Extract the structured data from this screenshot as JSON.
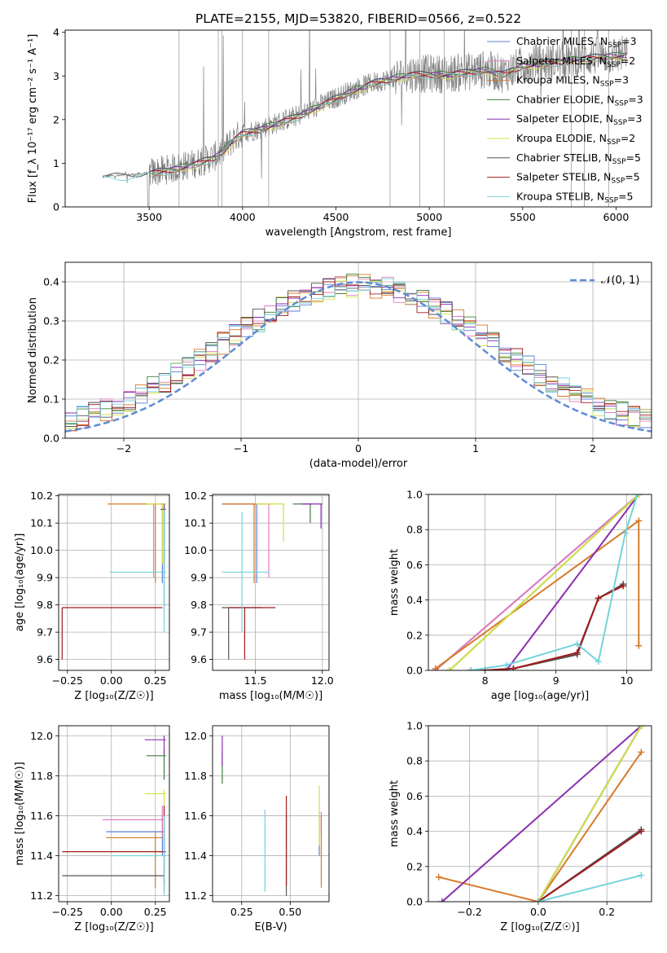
{
  "figure": {
    "title": "PLATE=2155, MJD=53820, FIBERID=0566, z=0.522"
  },
  "models": [
    {
      "name": "Chabrier MILES, N",
      "sub": "SSP",
      "suffix": "=3",
      "color": "#5e7fd6"
    },
    {
      "name": "Salpeter MILES, N",
      "sub": "SSP",
      "suffix": "=2",
      "color": "#e07bc0"
    },
    {
      "name": "Kroupa MILES, N",
      "sub": "SSP",
      "suffix": "=3",
      "color": "#d77a2a"
    },
    {
      "name": "Chabrier ELODIE, N",
      "sub": "SSP",
      "suffix": "=3",
      "color": "#3f7f3f"
    },
    {
      "name": "Salpeter ELODIE, N",
      "sub": "SSP",
      "suffix": "=3",
      "color": "#8a2fb0"
    },
    {
      "name": "Kroupa ELODIE, N",
      "sub": "SSP",
      "suffix": "=2",
      "color": "#d6e04a"
    },
    {
      "name": "Chabrier STELIB, N",
      "sub": "SSP",
      "suffix": "=5",
      "color": "#555555"
    },
    {
      "name": "Salpeter STELIB, N",
      "sub": "SSP",
      "suffix": "=5",
      "color": "#a01c1c"
    },
    {
      "name": "Kroupa STELIB, N",
      "sub": "SSP",
      "suffix": "=5",
      "color": "#74d3dc"
    }
  ],
  "chart_data": [
    {
      "id": "spectrum",
      "type": "line",
      "xlabel": "wavelength [Angstrom, rest frame]",
      "ylabel": "Flux [f_λ 10⁻¹⁷ erg cm⁻² s⁻¹ A⁻¹]",
      "xlim": [
        3050,
        6190
      ],
      "ylim": [
        0,
        4.05
      ],
      "xticks": [
        3500,
        4000,
        4500,
        5000,
        5500,
        6000
      ],
      "yticks": [
        0,
        1,
        2,
        3,
        4
      ],
      "grid": false,
      "legend": "top-right",
      "data_color": "#808080",
      "continuum": {
        "x": [
          3250,
          3350,
          3450,
          3550,
          3650,
          3750,
          3850,
          3900,
          3950,
          4000,
          4100,
          4200,
          4300,
          4400,
          4500,
          4600,
          4700,
          4800,
          4900,
          5000,
          5100,
          5200,
          5300,
          5400,
          5500,
          5600,
          5700,
          5800,
          5900,
          6050
        ],
        "y": [
          0.7,
          0.72,
          0.75,
          0.82,
          0.9,
          1.0,
          1.15,
          1.3,
          1.55,
          1.7,
          1.8,
          1.95,
          2.1,
          2.3,
          2.5,
          2.7,
          2.85,
          2.95,
          3.05,
          3.05,
          3.05,
          3.1,
          3.15,
          3.05,
          3.25,
          3.3,
          3.35,
          3.4,
          3.45,
          3.5
        ]
      }
    },
    {
      "id": "residuals",
      "type": "bar",
      "xlabel": "(data-model)/error",
      "ylabel": "Normed distribution",
      "xlim": [
        -2.5,
        2.5
      ],
      "ylim": [
        0,
        0.45
      ],
      "xticks": [
        -2,
        -1,
        0,
        1,
        2
      ],
      "yticks": [
        0.0,
        0.1,
        0.2,
        0.3,
        0.4
      ],
      "grid": true,
      "legend": "top-right",
      "gaussian_label": "𝒩(0, 1)",
      "gaussian_color": "#5e8bd6",
      "bin_width": 0.1
    },
    {
      "id": "z-age",
      "type": "scatter",
      "xlabel": "Z [log₁₀(Z/Z☉)]",
      "ylabel": "age  [log₁₀(age/yr)]",
      "xlim": [
        -0.3,
        0.33
      ],
      "ylim": [
        9.56,
        10.205
      ],
      "xticks": [
        -0.25,
        0.0,
        0.25
      ],
      "yticks": [
        9.6,
        9.7,
        9.8,
        9.9,
        10.0,
        10.1,
        10.2
      ],
      "grid": true,
      "points": [
        {
          "model": 0,
          "x": 0.29,
          "y": 10.17,
          "x0": 0.29,
          "x1": 0.3,
          "y0": 9.88,
          "y1": 10.17
        },
        {
          "model": 1,
          "x": 0.24,
          "y": 10.17,
          "x0": 0.24,
          "x1": 0.3,
          "y0": 9.9,
          "y1": 10.17
        },
        {
          "model": 2,
          "x": 0.25,
          "y": 10.17,
          "x0": -0.02,
          "x1": 0.29,
          "y0": 9.88,
          "y1": 10.17
        },
        {
          "model": 3,
          "x": 0.3,
          "y": 10.17,
          "x0": 0.28,
          "x1": 0.31,
          "y0": 9.95,
          "y1": 10.17
        },
        {
          "model": 4,
          "x": 0.3,
          "y": 10.17,
          "x0": 0.28,
          "x1": 0.31,
          "y0": 9.9,
          "y1": 10.17
        },
        {
          "model": 5,
          "x": 0.29,
          "y": 10.17,
          "x0": 0.2,
          "x1": 0.31,
          "y0": 9.95,
          "y1": 10.17
        },
        {
          "model": 6,
          "x": 0.3,
          "y": 10.15,
          "x0": 0.28,
          "x1": 0.31,
          "y0": 9.78,
          "y1": 10.15
        },
        {
          "model": 7,
          "x": -0.28,
          "y": 9.79,
          "x0": -0.28,
          "x1": 0.29,
          "y0": 9.6,
          "y1": 9.79
        },
        {
          "model": 8,
          "x": 0.3,
          "y": 9.92,
          "x0": -0.01,
          "x1": 0.31,
          "y0": 9.7,
          "y1": 10.15
        }
      ]
    },
    {
      "id": "mass-age",
      "type": "scatter",
      "xlabel": "mass [log₁₀(M/M☉)]",
      "ylabel": "",
      "xlim": [
        11.18,
        12.05
      ],
      "ylim": [
        9.56,
        10.205
      ],
      "xticks": [
        11.5,
        12.0
      ],
      "yticks": [
        9.6,
        9.7,
        9.8,
        9.9,
        10.0,
        10.1,
        10.2
      ],
      "grid": true,
      "points": [
        {
          "model": 0,
          "x": 11.51,
          "y": 10.17,
          "x0": 11.25,
          "x1": 11.55,
          "y0": 9.88,
          "y1": 10.17
        },
        {
          "model": 1,
          "x": 11.6,
          "y": 10.17,
          "x0": 11.25,
          "x1": 11.62,
          "y0": 9.9,
          "y1": 10.17
        },
        {
          "model": 2,
          "x": 11.49,
          "y": 10.17,
          "x0": 11.25,
          "x1": 11.52,
          "y0": 9.88,
          "y1": 10.17
        },
        {
          "model": 3,
          "x": 11.91,
          "y": 10.17,
          "x0": 11.78,
          "x1": 11.93,
          "y0": 10.1,
          "y1": 10.17
        },
        {
          "model": 4,
          "x": 11.99,
          "y": 10.17,
          "x0": 11.85,
          "x1": 12.0,
          "y0": 10.08,
          "y1": 10.17
        },
        {
          "model": 5,
          "x": 11.71,
          "y": 10.17,
          "x0": 11.5,
          "x1": 11.72,
          "y0": 10.03,
          "y1": 10.17
        },
        {
          "model": 6,
          "x": 11.3,
          "y": 9.79,
          "x0": 11.25,
          "x1": 11.55,
          "y0": 9.6,
          "y1": 9.79
        },
        {
          "model": 7,
          "x": 11.42,
          "y": 9.79,
          "x0": 11.3,
          "x1": 11.65,
          "y0": 9.6,
          "y1": 9.79
        },
        {
          "model": 8,
          "x": 11.4,
          "y": 9.92,
          "x0": 11.25,
          "x1": 11.6,
          "y0": 9.7,
          "y1": 10.14
        }
      ]
    },
    {
      "id": "age-weight",
      "type": "line",
      "xlabel": "age  [log₁₀(age/yr)]",
      "ylabel": "mass weight",
      "xlim": [
        7.2,
        10.35
      ],
      "ylim": [
        0,
        1.0
      ],
      "xticks": [
        8,
        9,
        10
      ],
      "yticks": [
        0.0,
        0.2,
        0.4,
        0.6,
        0.8,
        1.0
      ],
      "grid": true,
      "series": [
        {
          "model": 0,
          "x": [
            7.3,
            10.17
          ],
          "y": [
            0.0,
            1.0
          ]
        },
        {
          "model": 1,
          "x": [
            7.3,
            10.17
          ],
          "y": [
            0.0,
            1.0
          ]
        },
        {
          "model": 2,
          "x": [
            7.3,
            10.17,
            10.17
          ],
          "y": [
            0.01,
            0.85,
            0.14
          ]
        },
        {
          "model": 3,
          "x": [
            7.5,
            10.17
          ],
          "y": [
            0.0,
            1.0
          ]
        },
        {
          "model": 4,
          "x": [
            8.3,
            10.17
          ],
          "y": [
            0.0,
            1.0
          ]
        },
        {
          "model": 5,
          "x": [
            7.5,
            10.17
          ],
          "y": [
            0.0,
            1.0
          ]
        },
        {
          "model": 6,
          "x": [
            7.8,
            8.0,
            8.4,
            9.3,
            9.6,
            9.95
          ],
          "y": [
            0.0,
            0.0,
            0.01,
            0.09,
            0.41,
            0.49
          ]
        },
        {
          "model": 7,
          "x": [
            7.8,
            8.0,
            8.4,
            9.3,
            9.6,
            9.95
          ],
          "y": [
            0.0,
            0.0,
            0.01,
            0.1,
            0.41,
            0.48
          ]
        },
        {
          "model": 8,
          "x": [
            7.8,
            8.3,
            9.3,
            9.6,
            9.98,
            10.15
          ],
          "y": [
            0.0,
            0.03,
            0.15,
            0.05,
            0.78,
            1.0
          ]
        }
      ]
    },
    {
      "id": "z-mass",
      "type": "scatter",
      "xlabel": "Z [log₁₀(Z/Z☉)]",
      "ylabel": "mass [log₁₀(M/M☉)]",
      "xlim": [
        -0.3,
        0.33
      ],
      "ylim": [
        11.17,
        12.05
      ],
      "xticks": [
        -0.25,
        0.0,
        0.25
      ],
      "yticks": [
        11.2,
        11.4,
        11.6,
        11.8,
        12.0
      ],
      "grid": true,
      "points": [
        {
          "model": 0,
          "x": 0.29,
          "y": 11.52,
          "x0": -0.03,
          "x1": 0.3,
          "y0": 11.4,
          "y1": 11.6
        },
        {
          "model": 1,
          "x": 0.29,
          "y": 11.58,
          "x0": -0.05,
          "x1": 0.3,
          "y0": 11.5,
          "y1": 11.65
        },
        {
          "model": 2,
          "x": 0.25,
          "y": 11.49,
          "x0": -0.03,
          "x1": 0.29,
          "y0": 11.24,
          "y1": 11.52
        },
        {
          "model": 3,
          "x": 0.3,
          "y": 11.9,
          "x0": 0.2,
          "x1": 0.31,
          "y0": 11.78,
          "y1": 11.93
        },
        {
          "model": 4,
          "x": 0.3,
          "y": 11.98,
          "x0": 0.19,
          "x1": 0.31,
          "y0": 11.9,
          "y1": 12.0
        },
        {
          "model": 5,
          "x": 0.3,
          "y": 11.71,
          "x0": 0.19,
          "x1": 0.31,
          "y0": 11.55,
          "y1": 11.73
        },
        {
          "model": 6,
          "x": 0.3,
          "y": 11.3,
          "x0": -0.28,
          "x1": 0.3,
          "y0": 11.22,
          "y1": 11.55
        },
        {
          "model": 7,
          "x": 0.3,
          "y": 11.42,
          "x0": -0.28,
          "x1": 0.31,
          "y0": 11.25,
          "y1": 11.65
        },
        {
          "model": 8,
          "x": 0.3,
          "y": 11.4,
          "x0": -0.01,
          "x1": 0.31,
          "y0": 11.2,
          "y1": 11.6
        }
      ]
    },
    {
      "id": "ebv-mass",
      "type": "scatter",
      "xlabel": "E(B-V)",
      "ylabel": "",
      "xlim": [
        0.1,
        0.7
      ],
      "ylim": [
        11.17,
        12.05
      ],
      "xticks": [
        0.25,
        0.5
      ],
      "yticks": [
        11.2,
        11.4,
        11.6,
        11.8,
        12.0
      ],
      "grid": true,
      "points": [
        {
          "model": 0,
          "x": 0.65,
          "y": 11.52,
          "y0": 11.4,
          "y1": 11.62
        },
        {
          "model": 1,
          "x": 0.66,
          "y": 11.58,
          "y0": 11.5,
          "y1": 11.62
        },
        {
          "model": 2,
          "x": 0.66,
          "y": 11.49,
          "y0": 11.24,
          "y1": 11.6
        },
        {
          "model": 3,
          "x": 0.15,
          "y": 11.9,
          "y0": 11.76,
          "y1": 11.92
        },
        {
          "model": 4,
          "x": 0.15,
          "y": 11.98,
          "y0": 11.85,
          "y1": 12.0
        },
        {
          "model": 5,
          "x": 0.65,
          "y": 11.71,
          "y0": 11.45,
          "y1": 11.75
        },
        {
          "model": 6,
          "x": 0.48,
          "y": 11.3,
          "y0": 11.2,
          "y1": 11.6
        },
        {
          "model": 7,
          "x": 0.48,
          "y": 11.42,
          "y0": 11.25,
          "y1": 11.7
        },
        {
          "model": 8,
          "x": 0.37,
          "y": 11.4,
          "y0": 11.22,
          "y1": 11.63
        }
      ]
    },
    {
      "id": "z-weight",
      "type": "line",
      "xlabel": "Z [log₁₀(Z/Z☉)]",
      "ylabel": "mass weight",
      "xlim": [
        -0.32,
        0.33
      ],
      "ylim": [
        0,
        1.0
      ],
      "xticks": [
        -0.2,
        0.0,
        0.2
      ],
      "yticks": [
        0.0,
        0.2,
        0.4,
        0.6,
        0.8,
        1.0
      ],
      "grid": true,
      "series": [
        {
          "model": 0,
          "x": [
            0.0,
            0.3
          ],
          "y": [
            0.0,
            1.0
          ]
        },
        {
          "model": 1,
          "x": [
            0.0,
            0.3
          ],
          "y": [
            0.0,
            1.0
          ]
        },
        {
          "model": 2,
          "x": [
            -0.29,
            0.0,
            0.3
          ],
          "y": [
            0.14,
            0.0,
            0.85
          ]
        },
        {
          "model": 3,
          "x": [
            0.0,
            0.3
          ],
          "y": [
            0.0,
            1.0
          ]
        },
        {
          "model": 4,
          "x": [
            -0.28,
            0.3
          ],
          "y": [
            0.0,
            1.0
          ]
        },
        {
          "model": 5,
          "x": [
            0.0,
            0.3
          ],
          "y": [
            0.0,
            1.0
          ]
        },
        {
          "model": 6,
          "x": [
            0.0,
            0.3
          ],
          "y": [
            0.0,
            0.41
          ]
        },
        {
          "model": 7,
          "x": [
            0.0,
            0.3
          ],
          "y": [
            0.0,
            0.4
          ]
        },
        {
          "model": 8,
          "x": [
            0.0,
            0.3
          ],
          "y": [
            0.0,
            0.15
          ]
        }
      ]
    }
  ]
}
